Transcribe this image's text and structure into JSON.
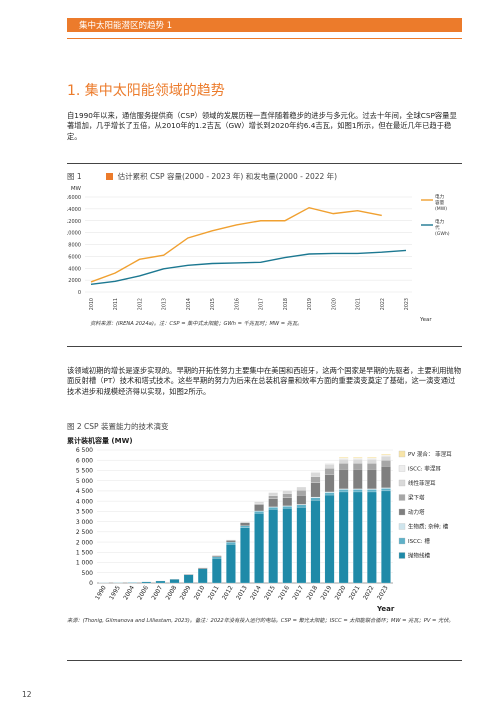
{
  "header": {
    "title": "集中太阳能潜区的趋势 1"
  },
  "section": {
    "title": "1. 集中太阳能领域的趋势"
  },
  "para1": "自1990年以来，通信服务提供商（CSP）领域的发展历程一直伴随着稳步的进步与多元化。过去十年间，全球CSP容量显著增加，几乎增长了五倍，从2010年的1.2吉瓦（GW）增长到2020年约6.4吉瓦，如图1所示，但在最近几年已趋于稳定。",
  "fig1": {
    "label": "图 1",
    "caption": "估计累积 CSP 容量(2000 - 2023 年) 和发电量(2000 - 2022 年)",
    "source": "资料来源：(IRENA 2024a)。注：CSP = 集中式太阳能；GWh = 千兆瓦时；MW = 兆瓦。"
  },
  "para2": "该领域初期的增长是逐步实现的。早期的开拓性努力主要集中在美国和西班牙，这两个国家是早期的先驱者，主要利用抛物面反射槽（PT）技术和塔式技术。这些早期的努力为后来在总装机容量和效率方面的重要演变奠定了基础，这一演变通过技术进步和规模经济得以实现，如图2所示。",
  "fig2": {
    "caption": "图 2 CSP 装置能力的技术演变",
    "source": "来源：(Thonig, Gilmanova and Lilliestam, 2023)。备注：2022年没有投入运行的电站。CSP = 聚光太阳能；ISCC = 太阳能联合循环；MW = 兆瓦；PV = 光伏。"
  },
  "page_number": "12",
  "colors": {
    "orange": "#ec7b2b",
    "teal": "#1c7891",
    "trough": "#1f8aa8"
  },
  "chart_data": [
    {
      "type": "line",
      "y_unit_label": "MW",
      "x": [
        "2010",
        "2011",
        "2012",
        "2013",
        "2014",
        "2015",
        "2016",
        "2017",
        "2018",
        "2019",
        "2020",
        "2021",
        "2022",
        "2023"
      ],
      "xlabel": "Year",
      "ylim": [
        0,
        16000
      ],
      "yticks": [
        0,
        2000,
        4000,
        6000,
        8000,
        10000,
        12000,
        14000,
        16000
      ],
      "series": [
        {
          "name": "电力容量 (MW)",
          "color": "#f0a030",
          "values": [
            1700,
            3200,
            5500,
            6200,
            9100,
            10300,
            11300,
            12000,
            12000,
            14200,
            13200,
            13700,
            12900,
            null
          ]
        },
        {
          "name": "电力代 (GWh)",
          "color": "#1c7891",
          "values": [
            1300,
            1800,
            2700,
            3900,
            4500,
            4800,
            4900,
            5000,
            5800,
            6400,
            6500,
            6500,
            6700,
            7000
          ]
        }
      ],
      "legend_position": "right"
    },
    {
      "type": "bar",
      "title": "累计装机容量 (MW)",
      "xlabel": "Year",
      "ylim": [
        0,
        6500
      ],
      "yticks": [
        0,
        500,
        1000,
        1500,
        2000,
        2500,
        3000,
        3500,
        4000,
        4500,
        5000,
        5500,
        6000,
        6500
      ],
      "categories": [
        "1990",
        "1995",
        "2004",
        "2006",
        "2007",
        "2008",
        "2009",
        "2010",
        "2011",
        "2012",
        "2013",
        "2014",
        "2015",
        "2016",
        "2017",
        "2018",
        "2019",
        "2020",
        "2021",
        "2022",
        "2023"
      ],
      "series": [
        {
          "name": "抛物线槽",
          "color": "#1f8aa8",
          "values": [
            14,
            20,
            25,
            55,
            100,
            180,
            400,
            700,
            1200,
            1900,
            2700,
            3400,
            3600,
            3650,
            3700,
            4050,
            4300,
            4450,
            4450,
            4450,
            4500
          ]
        },
        {
          "name": "ISCC: 槽",
          "color": "#5fb1c8",
          "values": [
            0,
            0,
            0,
            0,
            0,
            0,
            0,
            0,
            80,
            100,
            100,
            100,
            100,
            100,
            120,
            120,
            120,
            120,
            120,
            120,
            120
          ]
        },
        {
          "name": "生物质; 杂种; 槽",
          "color": "#cfe5ed",
          "values": [
            0,
            0,
            0,
            0,
            0,
            0,
            0,
            0,
            0,
            0,
            0,
            20,
            20,
            20,
            20,
            30,
            30,
            30,
            30,
            30,
            30
          ]
        },
        {
          "name": "动力塔",
          "color": "#7f7f7f",
          "values": [
            0,
            0,
            0,
            0,
            5,
            10,
            30,
            40,
            60,
            80,
            150,
            300,
            400,
            400,
            450,
            700,
            850,
            950,
            950,
            950,
            1050
          ]
        },
        {
          "name": "梁下塔",
          "color": "#a6a6a6",
          "values": [
            0,
            0,
            0,
            0,
            0,
            0,
            0,
            0,
            0,
            0,
            0,
            50,
            150,
            200,
            250,
            300,
            300,
            300,
            300,
            300,
            300
          ]
        },
        {
          "name": "线性菲涅耳",
          "color": "#d9d9d9",
          "values": [
            0,
            0,
            0,
            0,
            0,
            0,
            0,
            10,
            20,
            30,
            50,
            100,
            150,
            150,
            150,
            200,
            200,
            200,
            200,
            200,
            200
          ]
        },
        {
          "name": "ISCC: 菲涅耳",
          "color": "#ededed",
          "values": [
            0,
            0,
            0,
            0,
            0,
            0,
            0,
            0,
            0,
            0,
            0,
            0,
            0,
            0,
            0,
            50,
            50,
            50,
            50,
            50,
            50
          ]
        },
        {
          "name": "PV 混合： 菲涅耳",
          "color": "#f7e4a8",
          "values": [
            0,
            0,
            0,
            0,
            0,
            0,
            0,
            0,
            0,
            0,
            0,
            0,
            0,
            0,
            0,
            0,
            0,
            50,
            50,
            50,
            50
          ]
        }
      ],
      "legend_position": "right"
    }
  ]
}
